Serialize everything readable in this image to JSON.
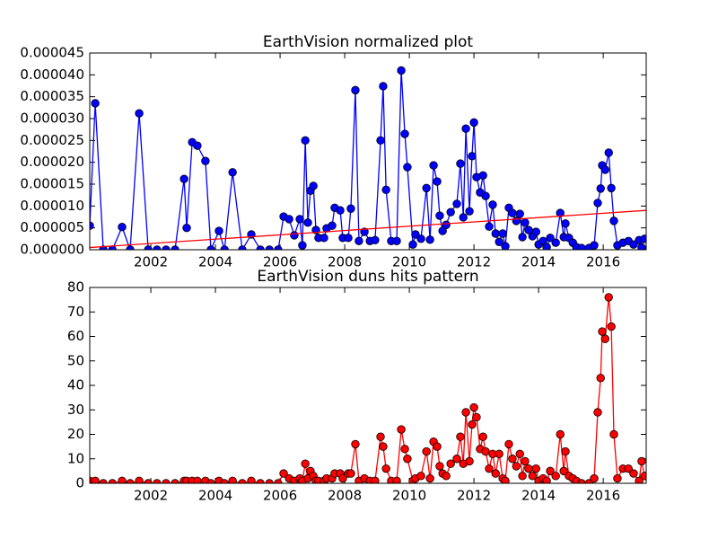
{
  "chart_data": [
    {
      "type": "line",
      "title": "EarthVision normalized plot",
      "x": [
        2000.11,
        2000.28,
        2000.53,
        2000.81,
        2001.11,
        2001.36,
        2001.64,
        2001.92,
        2002.19,
        2002.47,
        2002.75,
        2003.03,
        2003.11,
        2003.28,
        2003.44,
        2003.69,
        2003.86,
        2004.11,
        2004.28,
        2004.53,
        2004.83,
        2005.11,
        2005.39,
        2005.67,
        2005.94,
        2006.11,
        2006.28,
        2006.44,
        2006.61,
        2006.69,
        2006.78,
        2006.86,
        2006.94,
        2007.03,
        2007.11,
        2007.19,
        2007.36,
        2007.44,
        2007.61,
        2007.69,
        2007.86,
        2007.94,
        2008.11,
        2008.19,
        2008.33,
        2008.44,
        2008.61,
        2008.78,
        2008.94,
        2009.11,
        2009.19,
        2009.28,
        2009.44,
        2009.61,
        2009.75,
        2009.86,
        2009.94,
        2010.11,
        2010.19,
        2010.36,
        2010.53,
        2010.64,
        2010.75,
        2010.86,
        2010.94,
        2011.03,
        2011.14,
        2011.28,
        2011.47,
        2011.58,
        2011.67,
        2011.75,
        2011.86,
        2011.94,
        2012.0,
        2012.08,
        2012.19,
        2012.28,
        2012.36,
        2012.47,
        2012.58,
        2012.67,
        2012.78,
        2012.89,
        2012.97,
        2013.08,
        2013.19,
        2013.31,
        2013.42,
        2013.5,
        2013.58,
        2013.69,
        2013.81,
        2013.92,
        2014.0,
        2014.14,
        2014.25,
        2014.36,
        2014.53,
        2014.67,
        2014.78,
        2014.83,
        2014.94,
        2015.06,
        2015.17,
        2015.33,
        2015.56,
        2015.72,
        2015.83,
        2015.92,
        2015.97,
        2016.06,
        2016.17,
        2016.25,
        2016.33,
        2016.44,
        2016.61,
        2016.78,
        2016.94,
        2017.11,
        2017.19,
        2017.28
      ],
      "series": [
        {
          "color": "#0000ff",
          "marker": "o",
          "values": [
            5.5e-06,
            3.35e-05,
            0,
            0,
            5.2e-06,
            0,
            3.12e-05,
            0,
            0,
            0,
            0,
            1.62e-05,
            5e-06,
            2.46e-05,
            2.38e-05,
            2.03e-05,
            0,
            4.3e-06,
            0,
            1.77e-05,
            0,
            3.5e-06,
            0,
            0,
            0,
            7.6e-06,
            7e-06,
            3.3e-06,
            7e-06,
            1e-06,
            2.5e-05,
            6.2e-06,
            1.35e-05,
            1.46e-05,
            4.5e-06,
            2.7e-06,
            2.7e-06,
            4.9e-06,
            5.5e-06,
            9.6e-06,
            9e-06,
            2.7e-06,
            2.7e-06,
            9.4e-06,
            3.65e-05,
            2e-06,
            4.1e-06,
            2e-06,
            2.2e-06,
            2.5e-05,
            3.74e-05,
            1.37e-05,
            2e-06,
            2e-06,
            4.1e-05,
            2.65e-05,
            1.89e-05,
            1.2e-06,
            3.5e-06,
            2.5e-06,
            1.41e-05,
            2.3e-06,
            1.93e-05,
            1.56e-05,
            7.8e-06,
            4.3e-06,
            5.7e-06,
            8.6e-06,
            1.05e-05,
            1.97e-05,
            7.4e-06,
            2.77e-05,
            8.8e-06,
            2.14e-05,
            2.91e-05,
            1.66e-05,
            1.31e-05,
            1.7e-05,
            1.23e-05,
            5.3e-06,
            1.03e-05,
            3.7e-06,
            1.8e-06,
            3.7e-06,
            8e-07,
            9.6e-06,
            8.4e-06,
            6.6e-06,
            8.2e-06,
            2.9e-06,
            6.2e-06,
            4.5e-06,
            3.1e-06,
            4.1e-06,
            1.2e-06,
            2e-06,
            6e-07,
            2.7e-06,
            1.6e-06,
            8.4e-06,
            2.9e-06,
            6e-06,
            2.7e-06,
            1.6e-06,
            6e-07,
            4e-07,
            4e-07,
            1e-06,
            1.07e-05,
            1.4e-05,
            1.93e-05,
            1.83e-05,
            2.22e-05,
            1.41e-05,
            6.6e-06,
            1e-06,
            1.6e-06,
            2e-06,
            1.2e-06,
            2.2e-06,
            5e-07,
            2.5e-06
          ]
        },
        {
          "color": "#ff0000",
          "x": [
            2000.11,
            2017.33
          ],
          "values": [
            5e-07,
            9e-06
          ]
        }
      ],
      "xlim": [
        2000.11,
        2017.33
      ],
      "xticks": [
        2002,
        2004,
        2006,
        2008,
        2010,
        2012,
        2014,
        2016
      ],
      "ylim": [
        0,
        4.5e-05
      ],
      "yticks": [
        {
          "value": 0,
          "label": "0.000000"
        },
        {
          "value": 5e-06,
          "label": "0.000005"
        },
        {
          "value": 1e-05,
          "label": "0.000010"
        },
        {
          "value": 1.5e-05,
          "label": "0.000015"
        },
        {
          "value": 2e-05,
          "label": "0.000020"
        },
        {
          "value": 2.5e-05,
          "label": "0.000025"
        },
        {
          "value": 3e-05,
          "label": "0.000030"
        },
        {
          "value": 3.5e-05,
          "label": "0.000035"
        },
        {
          "value": 4e-05,
          "label": "0.000040"
        },
        {
          "value": 4.5e-05,
          "label": "0.000045"
        }
      ]
    },
    {
      "type": "line",
      "title": "EarthVision duns hits pattern",
      "x": [
        2000.11,
        2000.28,
        2000.53,
        2000.81,
        2001.11,
        2001.36,
        2001.64,
        2001.92,
        2002.19,
        2002.47,
        2002.75,
        2003.03,
        2003.11,
        2003.28,
        2003.44,
        2003.69,
        2003.86,
        2004.11,
        2004.28,
        2004.53,
        2004.83,
        2005.11,
        2005.39,
        2005.67,
        2005.94,
        2006.11,
        2006.28,
        2006.44,
        2006.61,
        2006.69,
        2006.78,
        2006.86,
        2006.94,
        2007.03,
        2007.11,
        2007.19,
        2007.36,
        2007.44,
        2007.61,
        2007.69,
        2007.86,
        2007.94,
        2008.11,
        2008.19,
        2008.33,
        2008.44,
        2008.61,
        2008.78,
        2008.94,
        2009.11,
        2009.19,
        2009.28,
        2009.44,
        2009.61,
        2009.75,
        2009.86,
        2009.94,
        2010.11,
        2010.19,
        2010.36,
        2010.53,
        2010.64,
        2010.75,
        2010.86,
        2010.94,
        2011.03,
        2011.14,
        2011.28,
        2011.47,
        2011.58,
        2011.67,
        2011.75,
        2011.86,
        2011.94,
        2012.0,
        2012.08,
        2012.19,
        2012.28,
        2012.36,
        2012.47,
        2012.58,
        2012.67,
        2012.78,
        2012.89,
        2012.97,
        2013.08,
        2013.19,
        2013.31,
        2013.42,
        2013.5,
        2013.58,
        2013.69,
        2013.81,
        2013.92,
        2014.0,
        2014.14,
        2014.25,
        2014.36,
        2014.53,
        2014.67,
        2014.78,
        2014.83,
        2014.94,
        2015.06,
        2015.17,
        2015.33,
        2015.56,
        2015.72,
        2015.83,
        2015.92,
        2015.97,
        2016.06,
        2016.17,
        2016.25,
        2016.33,
        2016.44,
        2016.61,
        2016.78,
        2016.94,
        2017.11,
        2017.19,
        2017.28
      ],
      "series": [
        {
          "color": "#ff0000",
          "marker": "o",
          "values": [
            1,
            1,
            0,
            0,
            1,
            0,
            1,
            0,
            0,
            0,
            0,
            1,
            1,
            1,
            1,
            1,
            0,
            1,
            0,
            1,
            0,
            1,
            0,
            0,
            0,
            4,
            2,
            1,
            2,
            1,
            8,
            2,
            5,
            3,
            1,
            1,
            1,
            2,
            2,
            4,
            4,
            2,
            4,
            4,
            16,
            1,
            2,
            1,
            1,
            19,
            15,
            6,
            1,
            1,
            22,
            14,
            10,
            1,
            2,
            3,
            13,
            2,
            17,
            15,
            7,
            4,
            3,
            8,
            10,
            19,
            8,
            29,
            9,
            24,
            31,
            27,
            14,
            19,
            13,
            6,
            12,
            4,
            12,
            2,
            1,
            16,
            10,
            7,
            12,
            3,
            9,
            6,
            3,
            6,
            1,
            2,
            1,
            5,
            3,
            20,
            5,
            13,
            3,
            2,
            1,
            0,
            0,
            2,
            29,
            43,
            62,
            59,
            76,
            64,
            20,
            2,
            6,
            6,
            4,
            1,
            9,
            3
          ]
        }
      ],
      "xlim": [
        2000.11,
        2017.33
      ],
      "xticks": [
        2002,
        2004,
        2006,
        2008,
        2010,
        2012,
        2014,
        2016
      ],
      "ylim": [
        0,
        80
      ],
      "yticks": [
        0,
        10,
        20,
        30,
        40,
        50,
        60,
        70,
        80
      ]
    }
  ]
}
